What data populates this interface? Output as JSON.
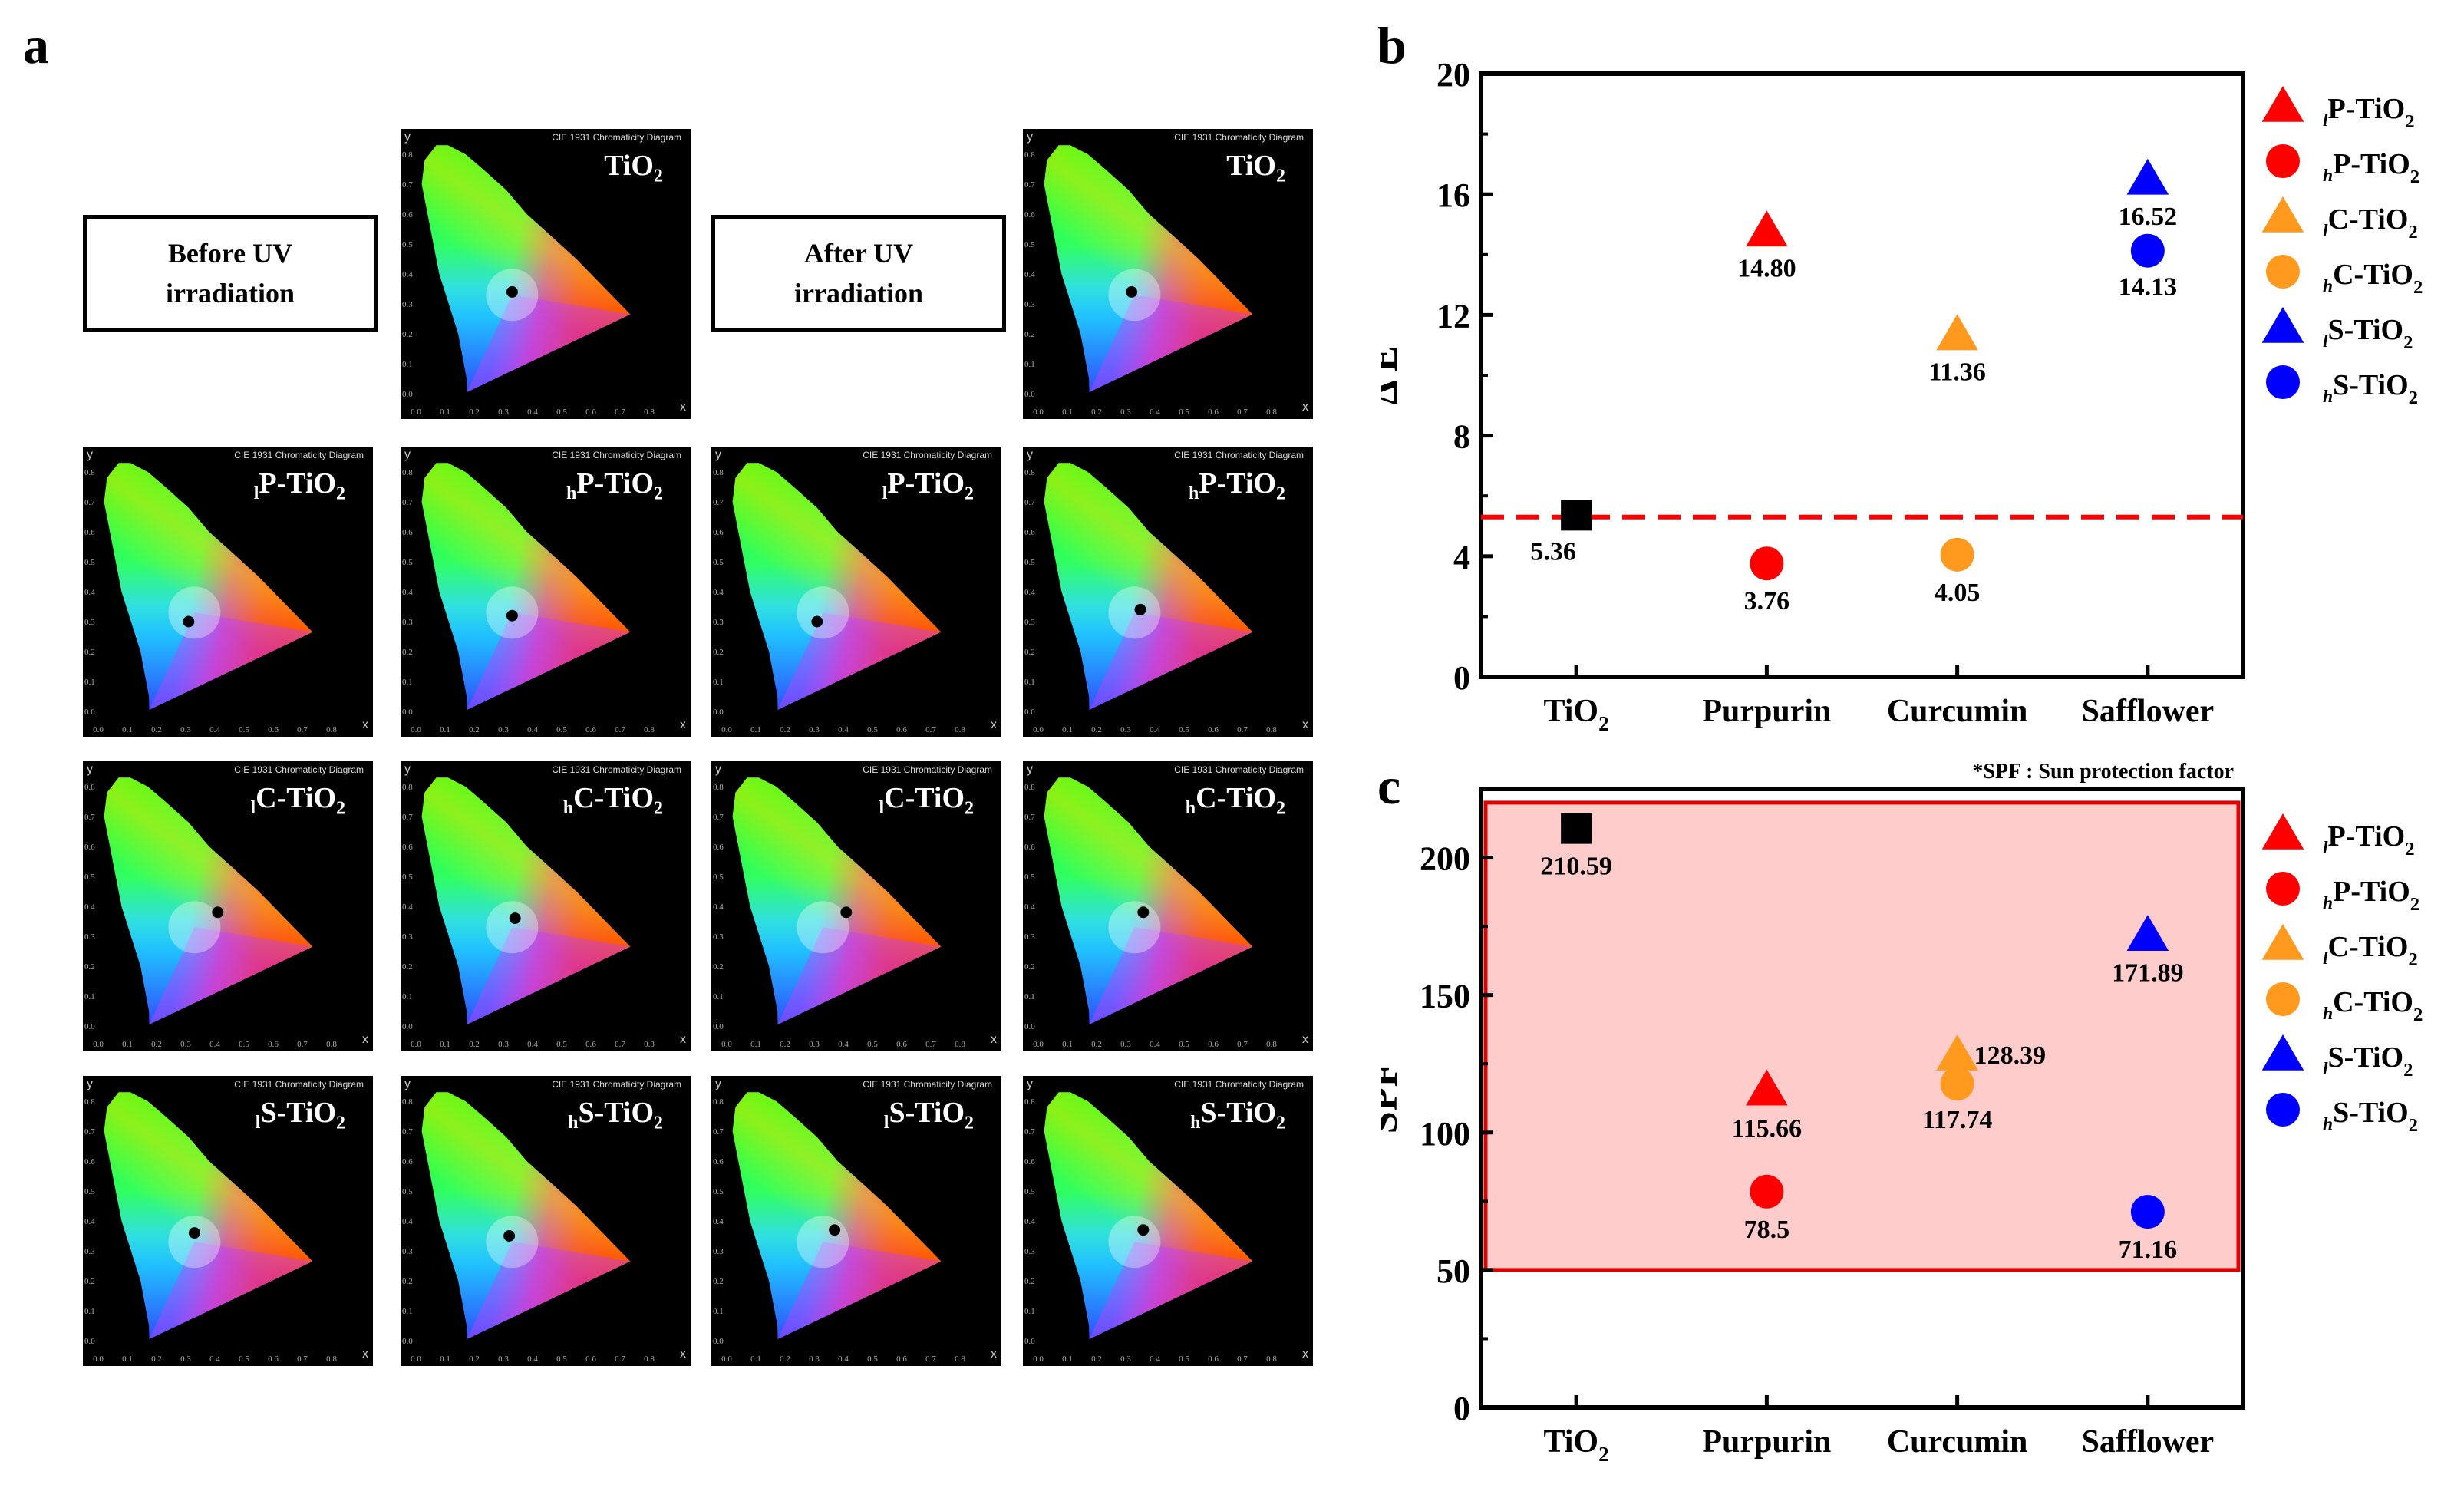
{
  "panel_a": {
    "label": "a",
    "before_label": [
      "Before UV",
      "irradiation"
    ],
    "after_label": [
      "After UV",
      "irradiation"
    ],
    "cie_title": "CIE 1931 Chromaticity Diagram",
    "x_axis_letter": "x",
    "y_axis_letter": "y",
    "x_ticks": [
      "0.0",
      "0.1",
      "0.2",
      "0.3",
      "0.4",
      "0.5",
      "0.6",
      "0.7",
      "0.8"
    ],
    "y_ticks": [
      "0.0",
      "0.1",
      "0.2",
      "0.3",
      "0.4",
      "0.5",
      "0.6",
      "0.7",
      "0.8"
    ],
    "diagrams": [
      {
        "group": "before",
        "prefix": "",
        "name": "TiO",
        "sub": "2",
        "x": 0.33,
        "y": 0.34
      },
      {
        "group": "after",
        "prefix": "",
        "name": "TiO",
        "sub": "2",
        "x": 0.32,
        "y": 0.34
      },
      {
        "group": "before",
        "prefix": "l",
        "name": "P-TiO",
        "sub": "2",
        "x": 0.31,
        "y": 0.3
      },
      {
        "group": "before",
        "prefix": "h",
        "name": "P-TiO",
        "sub": "2",
        "x": 0.33,
        "y": 0.32
      },
      {
        "group": "after",
        "prefix": "l",
        "name": "P-TiO",
        "sub": "2",
        "x": 0.31,
        "y": 0.3
      },
      {
        "group": "after",
        "prefix": "h",
        "name": "P-TiO",
        "sub": "2",
        "x": 0.35,
        "y": 0.34
      },
      {
        "group": "before",
        "prefix": "l",
        "name": "C-TiO",
        "sub": "2",
        "x": 0.41,
        "y": 0.38
      },
      {
        "group": "before",
        "prefix": "h",
        "name": "C-TiO",
        "sub": "2",
        "x": 0.34,
        "y": 0.36
      },
      {
        "group": "after",
        "prefix": "l",
        "name": "C-TiO",
        "sub": "2",
        "x": 0.41,
        "y": 0.38
      },
      {
        "group": "after",
        "prefix": "h",
        "name": "C-TiO",
        "sub": "2",
        "x": 0.36,
        "y": 0.38
      },
      {
        "group": "before",
        "prefix": "l",
        "name": "S-TiO",
        "sub": "2",
        "x": 0.33,
        "y": 0.36
      },
      {
        "group": "before",
        "prefix": "h",
        "name": "S-TiO",
        "sub": "2",
        "x": 0.32,
        "y": 0.35
      },
      {
        "group": "after",
        "prefix": "l",
        "name": "S-TiO",
        "sub": "2",
        "x": 0.37,
        "y": 0.37
      },
      {
        "group": "after",
        "prefix": "h",
        "name": "S-TiO",
        "sub": "2",
        "x": 0.36,
        "y": 0.37
      }
    ]
  },
  "chart_data": [
    {
      "panel": "b",
      "type": "scatter",
      "ylabel": "Δ E",
      "categories": [
        "TiO2",
        "Purpurin",
        "Curcumin",
        "Safflower"
      ],
      "category_display": [
        [
          "TiO",
          "2"
        ],
        [
          "Purpurin",
          ""
        ],
        [
          "Curcumin",
          ""
        ],
        [
          "Safflower",
          ""
        ]
      ],
      "ylim": [
        0,
        20
      ],
      "yticks": [
        0,
        4,
        8,
        12,
        16,
        20
      ],
      "threshold_line": {
        "y": 5.3,
        "color": "#ff0000",
        "style": "dashed"
      },
      "points": [
        {
          "category": "TiO2",
          "series": "TiO2",
          "marker": "square",
          "color": "#000000",
          "value": 5.36,
          "label": "5.36"
        },
        {
          "category": "Purpurin",
          "series": "lP-TiO2",
          "marker": "triangle",
          "color": "#ff0000",
          "value": 14.8,
          "label": "14.80"
        },
        {
          "category": "Purpurin",
          "series": "hP-TiO2",
          "marker": "circle",
          "color": "#ff0000",
          "value": 3.76,
          "label": "3.76"
        },
        {
          "category": "Curcumin",
          "series": "lC-TiO2",
          "marker": "triangle",
          "color": "#ff9a1e",
          "value": 11.36,
          "label": "11.36"
        },
        {
          "category": "Curcumin",
          "series": "hC-TiO2",
          "marker": "circle",
          "color": "#ff9a1e",
          "value": 4.05,
          "label": "4.05"
        },
        {
          "category": "Safflower",
          "series": "lS-TiO2",
          "marker": "triangle",
          "color": "#0000ff",
          "value": 16.52,
          "label": "16.52"
        },
        {
          "category": "Safflower",
          "series": "hS-TiO2",
          "marker": "circle",
          "color": "#0000ff",
          "value": 14.13,
          "label": "14.13"
        }
      ],
      "legend": [
        {
          "prefix": "l",
          "name": "P-TiO",
          "sub": "2",
          "marker": "triangle",
          "color": "#ff0000"
        },
        {
          "prefix": "h",
          "name": "P-TiO",
          "sub": "2",
          "marker": "circle",
          "color": "#ff0000"
        },
        {
          "prefix": "l",
          "name": "C-TiO",
          "sub": "2",
          "marker": "triangle",
          "color": "#ff9a1e"
        },
        {
          "prefix": "h",
          "name": "C-TiO",
          "sub": "2",
          "marker": "circle",
          "color": "#ff9a1e"
        },
        {
          "prefix": "l",
          "name": "S-TiO",
          "sub": "2",
          "marker": "triangle",
          "color": "#0000ff"
        },
        {
          "prefix": "h",
          "name": "S-TiO",
          "sub": "2",
          "marker": "circle",
          "color": "#0000ff"
        }
      ]
    },
    {
      "panel": "c",
      "type": "scatter",
      "ylabel": "SPF",
      "note": "*SPF : Sun protection factor",
      "categories": [
        "TiO2",
        "Purpurin",
        "Curcumin",
        "Safflower"
      ],
      "category_display": [
        [
          "TiO",
          "2"
        ],
        [
          "Purpurin",
          ""
        ],
        [
          "Curcumin",
          ""
        ],
        [
          "Safflower",
          ""
        ]
      ],
      "ylim": [
        0,
        225
      ],
      "yticks": [
        0,
        50,
        100,
        150,
        200
      ],
      "shaded_region": {
        "from": 50,
        "to": 220,
        "fill": "#ffcccc",
        "stroke": "#e00000"
      },
      "points": [
        {
          "category": "TiO2",
          "series": "TiO2",
          "marker": "square",
          "color": "#000000",
          "value": 210.59,
          "label": "210.59"
        },
        {
          "category": "Purpurin",
          "series": "lP-TiO2",
          "marker": "triangle",
          "color": "#ff0000",
          "value": 115.66,
          "label": "115.66"
        },
        {
          "category": "Purpurin",
          "series": "hP-TiO2",
          "marker": "circle",
          "color": "#ff0000",
          "value": 78.5,
          "label": "78.5"
        },
        {
          "category": "Curcumin",
          "series": "lC-TiO2",
          "marker": "triangle",
          "color": "#ff9a1e",
          "value": 128.39,
          "label": "128.39"
        },
        {
          "category": "Curcumin",
          "series": "hC-TiO2",
          "marker": "circle",
          "color": "#ff9a1e",
          "value": 117.74,
          "label": "117.74"
        },
        {
          "category": "Safflower",
          "series": "lS-TiO2",
          "marker": "triangle",
          "color": "#0000ff",
          "value": 171.89,
          "label": "171.89"
        },
        {
          "category": "Safflower",
          "series": "hS-TiO2",
          "marker": "circle",
          "color": "#0000ff",
          "value": 71.16,
          "label": "71.16"
        }
      ],
      "legend": [
        {
          "prefix": "l",
          "name": "P-TiO",
          "sub": "2",
          "marker": "triangle",
          "color": "#ff0000"
        },
        {
          "prefix": "h",
          "name": "P-TiO",
          "sub": "2",
          "marker": "circle",
          "color": "#ff0000"
        },
        {
          "prefix": "l",
          "name": "C-TiO",
          "sub": "2",
          "marker": "triangle",
          "color": "#ff9a1e"
        },
        {
          "prefix": "h",
          "name": "C-TiO",
          "sub": "2",
          "marker": "circle",
          "color": "#ff9a1e"
        },
        {
          "prefix": "l",
          "name": "S-TiO",
          "sub": "2",
          "marker": "triangle",
          "color": "#0000ff"
        },
        {
          "prefix": "h",
          "name": "S-TiO",
          "sub": "2",
          "marker": "circle",
          "color": "#0000ff"
        }
      ]
    }
  ]
}
